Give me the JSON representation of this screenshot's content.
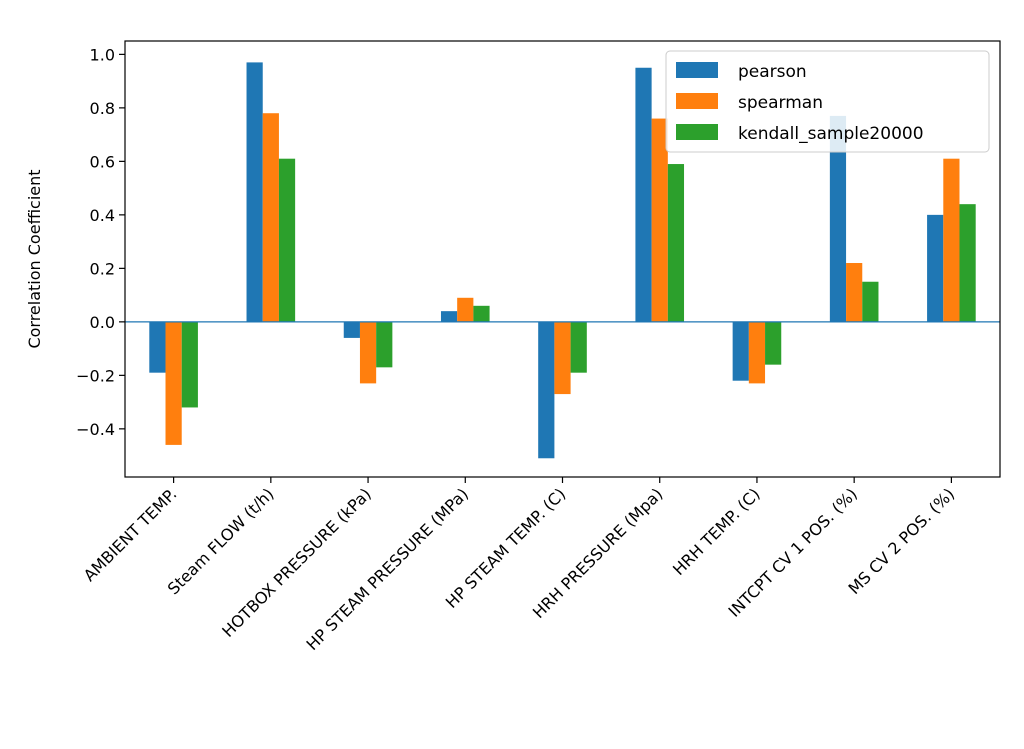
{
  "chart_data": {
    "type": "bar",
    "title": "",
    "xlabel": "",
    "ylabel": "Correlation Coefficient",
    "ylim": [
      -0.58,
      1.05
    ],
    "yticks": [
      -0.4,
      -0.2,
      0.0,
      0.2,
      0.4,
      0.6,
      0.8,
      1.0
    ],
    "ytick_labels": [
      "−0.4",
      "−0.2",
      "0.0",
      "0.2",
      "0.4",
      "0.6",
      "0.8",
      "1.0"
    ],
    "grid": false,
    "zero_line": true,
    "legend_position": "top-right",
    "categories": [
      "AMBIENT TEMP.",
      "Steam FLOW (t/h)",
      "HOTBOX PRESSURE (kPa)",
      "HP STEAM PRESSURE (MPa)",
      "HP STEAM TEMP. (C)",
      "HRH PRESSURE (Mpa)",
      "HRH TEMP. (C)",
      "INTCPT CV 1 POS. (%)",
      "MS CV 2 POS. (%)"
    ],
    "series": [
      {
        "name": "pearson",
        "color": "#1f77b4",
        "values": [
          -0.19,
          0.97,
          -0.06,
          0.04,
          -0.51,
          0.95,
          -0.22,
          0.77,
          0.4
        ]
      },
      {
        "name": "spearman",
        "color": "#ff7f0e",
        "values": [
          -0.46,
          0.78,
          -0.23,
          0.09,
          -0.27,
          0.76,
          -0.23,
          0.22,
          0.61
        ]
      },
      {
        "name": "kendall_sample20000",
        "color": "#2ca02c",
        "values": [
          -0.32,
          0.61,
          -0.17,
          0.06,
          -0.19,
          0.59,
          -0.16,
          0.15,
          0.44
        ]
      }
    ]
  }
}
